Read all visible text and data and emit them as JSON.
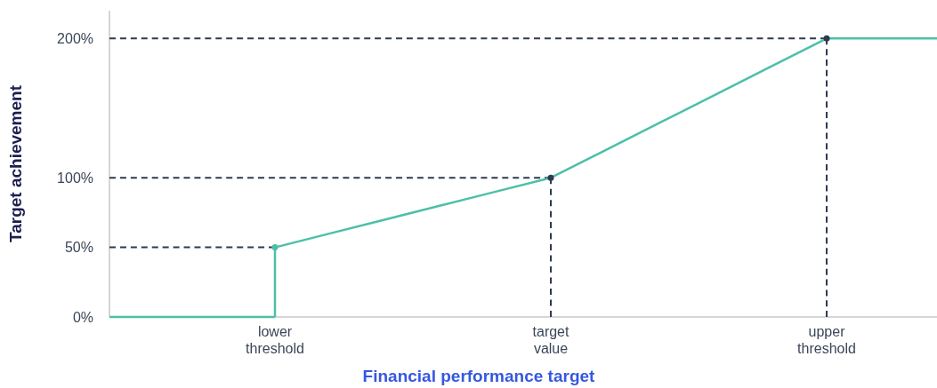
{
  "chart_data": {
    "type": "line",
    "xlabel": "Financial performance target",
    "ylabel": "Target achievement",
    "categories": [
      null,
      null,
      null,
      "lower threshold",
      null,
      null,
      null,
      null,
      "target value",
      null,
      null,
      null,
      null,
      "upper threshold",
      null,
      null
    ],
    "ylim": [
      0,
      220
    ],
    "yticks": [
      {
        "value": 0,
        "label": "0%"
      },
      {
        "value": 50,
        "label": "50%"
      },
      {
        "value": 100,
        "label": "100%"
      },
      {
        "value": 200,
        "label": "200%"
      }
    ],
    "series": [
      {
        "color": "#2e3a4f",
        "line_style": "dashed",
        "values": [
          50,
          50,
          50,
          50,
          null,
          null,
          null,
          null,
          null,
          null,
          null,
          null,
          null,
          null,
          null,
          null
        ]
      },
      {
        "color": "#2e3a4f",
        "line_style": "dashed",
        "values": [
          100,
          100,
          100,
          100,
          100,
          100,
          100,
          100,
          100,
          null,
          null,
          null,
          null,
          null,
          null,
          null
        ]
      },
      {
        "color": "#2e3a4f",
        "line_style": "dashed",
        "values": [
          200,
          200,
          200,
          200,
          200,
          200,
          200,
          200,
          200,
          200,
          200,
          200,
          200,
          200,
          null,
          null
        ]
      },
      {
        "type": "lollipop",
        "color": "#2e3a4f",
        "line_style": "dashed",
        "values": [
          null,
          null,
          null,
          null,
          null,
          null,
          null,
          null,
          100,
          null,
          null,
          null,
          null,
          200,
          null,
          null
        ]
      },
      {
        "color": "#4dbfa8",
        "line_style": "solid",
        "values": [
          0,
          0,
          0,
          0,
          null,
          null,
          null,
          null,
          null,
          null,
          null,
          null,
          null,
          null,
          null,
          null
        ]
      },
      {
        "type": "lollipop",
        "color": "#4dbfa8",
        "line_style": "solid",
        "values": [
          null,
          null,
          null,
          50,
          null,
          null,
          null,
          null,
          null,
          null,
          null,
          null,
          null,
          null,
          null,
          null
        ]
      },
      {
        "color": "#4dbfa8",
        "line_style": "solid",
        "values": [
          null,
          null,
          null,
          50,
          60,
          70,
          80,
          90,
          100,
          120,
          140,
          160,
          180,
          200,
          200,
          200
        ]
      }
    ]
  }
}
